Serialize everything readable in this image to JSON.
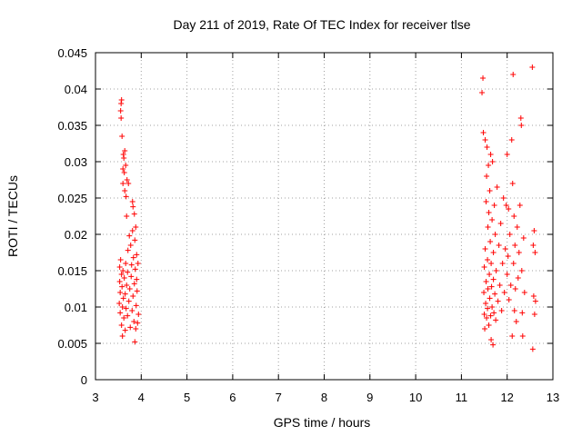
{
  "chart_data": {
    "type": "scatter",
    "title": "Day 211 of 2019, Rate Of TEC Index for receiver tlse",
    "xlabel": "GPS time / hours",
    "ylabel": "ROTI / TECUs",
    "xlim": [
      3,
      13
    ],
    "ylim": [
      0,
      0.045
    ],
    "xticks": [
      "3",
      "4",
      "5",
      "6",
      "7",
      "8",
      "9",
      "10",
      "11",
      "12",
      "13"
    ],
    "yticks": [
      "0",
      "0.005",
      "0.01",
      "0.015",
      "0.02",
      "0.025",
      "0.03",
      "0.035",
      "0.04",
      "0.045"
    ],
    "grid": true,
    "marker": "plus",
    "color": "#ff0000",
    "series": [
      {
        "name": "ROTI",
        "points": [
          [
            3.52,
            0.0105
          ],
          [
            3.53,
            0.0135
          ],
          [
            3.53,
            0.0155
          ],
          [
            3.54,
            0.012
          ],
          [
            3.54,
            0.0092
          ],
          [
            3.55,
            0.0165
          ],
          [
            3.55,
            0.037
          ],
          [
            3.56,
            0.038
          ],
          [
            3.56,
            0.036
          ],
          [
            3.57,
            0.0385
          ],
          [
            3.57,
            0.0145
          ],
          [
            3.57,
            0.0075
          ],
          [
            3.58,
            0.0128
          ],
          [
            3.58,
            0.0335
          ],
          [
            3.59,
            0.006
          ],
          [
            3.59,
            0.01
          ],
          [
            3.6,
            0.015
          ],
          [
            3.6,
            0.029
          ],
          [
            3.6,
            0.027
          ],
          [
            3.61,
            0.0112
          ],
          [
            3.61,
            0.031
          ],
          [
            3.62,
            0.0305
          ],
          [
            3.62,
            0.0085
          ],
          [
            3.63,
            0.0285
          ],
          [
            3.63,
            0.014
          ],
          [
            3.64,
            0.0315
          ],
          [
            3.64,
            0.026
          ],
          [
            3.65,
            0.0068
          ],
          [
            3.65,
            0.0118
          ],
          [
            3.66,
            0.0295
          ],
          [
            3.66,
            0.016
          ],
          [
            3.67,
            0.0252
          ],
          [
            3.67,
            0.0098
          ],
          [
            3.68,
            0.0225
          ],
          [
            3.68,
            0.013
          ],
          [
            3.69,
            0.0275
          ],
          [
            3.7,
            0.0088
          ],
          [
            3.7,
            0.0148
          ],
          [
            3.71,
            0.0178
          ],
          [
            3.72,
            0.027
          ],
          [
            3.73,
            0.0108
          ],
          [
            3.74,
            0.0198
          ],
          [
            3.75,
            0.0125
          ],
          [
            3.76,
            0.0072
          ],
          [
            3.77,
            0.0185
          ],
          [
            3.78,
            0.0142
          ],
          [
            3.79,
            0.0158
          ],
          [
            3.8,
            0.0095
          ],
          [
            3.81,
            0.0205
          ],
          [
            3.81,
            0.0245
          ],
          [
            3.82,
            0.0115
          ],
          [
            3.82,
            0.0238
          ],
          [
            3.83,
            0.0168
          ],
          [
            3.84,
            0.008
          ],
          [
            3.85,
            0.0132
          ],
          [
            3.85,
            0.0228
          ],
          [
            3.86,
            0.0052
          ],
          [
            3.86,
            0.0192
          ],
          [
            3.87,
            0.0152
          ],
          [
            3.88,
            0.007
          ],
          [
            3.88,
            0.021
          ],
          [
            3.89,
            0.0102
          ],
          [
            3.9,
            0.0172
          ],
          [
            3.9,
            0.0138
          ],
          [
            3.91,
            0.0122
          ],
          [
            3.92,
            0.0078
          ],
          [
            3.93,
            0.016
          ],
          [
            3.94,
            0.009
          ],
          [
            11.45,
            0.0395
          ],
          [
            11.47,
            0.0415
          ],
          [
            11.48,
            0.034
          ],
          [
            11.49,
            0.012
          ],
          [
            11.5,
            0.009
          ],
          [
            11.5,
            0.0155
          ],
          [
            11.51,
            0.007
          ],
          [
            11.52,
            0.033
          ],
          [
            11.52,
            0.018
          ],
          [
            11.53,
            0.0105
          ],
          [
            11.54,
            0.0245
          ],
          [
            11.54,
            0.0135
          ],
          [
            11.55,
            0.028
          ],
          [
            11.55,
            0.0085
          ],
          [
            11.56,
            0.032
          ],
          [
            11.57,
            0.0165
          ],
          [
            11.57,
            0.0098
          ],
          [
            11.58,
            0.021
          ],
          [
            11.58,
            0.0125
          ],
          [
            11.59,
            0.0295
          ],
          [
            11.6,
            0.0075
          ],
          [
            11.6,
            0.023
          ],
          [
            11.61,
            0.0145
          ],
          [
            11.62,
            0.0112
          ],
          [
            11.62,
            0.026
          ],
          [
            11.63,
            0.019
          ],
          [
            11.64,
            0.0088
          ],
          [
            11.64,
            0.031
          ],
          [
            11.65,
            0.0055
          ],
          [
            11.65,
            0.016
          ],
          [
            11.66,
            0.0128
          ],
          [
            11.67,
            0.022
          ],
          [
            11.67,
            0.01
          ],
          [
            11.68,
            0.03
          ],
          [
            11.69,
            0.0048
          ],
          [
            11.7,
            0.0175
          ],
          [
            11.7,
            0.0138
          ],
          [
            11.71,
            0.0092
          ],
          [
            11.72,
            0.024
          ],
          [
            11.73,
            0.0118
          ],
          [
            11.74,
            0.02
          ],
          [
            11.75,
            0.0082
          ],
          [
            11.76,
            0.015
          ],
          [
            11.78,
            0.0265
          ],
          [
            11.8,
            0.0108
          ],
          [
            11.82,
            0.0185
          ],
          [
            11.84,
            0.013
          ],
          [
            11.86,
            0.0215
          ],
          [
            11.88,
            0.0095
          ],
          [
            11.9,
            0.016
          ],
          [
            11.92,
            0.025
          ],
          [
            11.94,
            0.012
          ],
          [
            11.96,
            0.018
          ],
          [
            11.98,
            0.024
          ],
          [
            12.0,
            0.031
          ],
          [
            12.0,
            0.0145
          ],
          [
            12.02,
            0.017
          ],
          [
            12.03,
            0.0235
          ],
          [
            12.04,
            0.011
          ],
          [
            12.06,
            0.02
          ],
          [
            12.08,
            0.013
          ],
          [
            12.1,
            0.033
          ],
          [
            12.11,
            0.006
          ],
          [
            12.12,
            0.027
          ],
          [
            12.13,
            0.042
          ],
          [
            12.14,
            0.016
          ],
          [
            12.15,
            0.0225
          ],
          [
            12.16,
            0.0095
          ],
          [
            12.17,
            0.0185
          ],
          [
            12.18,
            0.0125
          ],
          [
            12.2,
            0.008
          ],
          [
            12.22,
            0.021
          ],
          [
            12.24,
            0.014
          ],
          [
            12.26,
            0.0175
          ],
          [
            12.28,
            0.024
          ],
          [
            12.3,
            0.036
          ],
          [
            12.31,
            0.035
          ],
          [
            12.32,
            0.015
          ],
          [
            12.33,
            0.0092
          ],
          [
            12.34,
            0.006
          ],
          [
            12.36,
            0.0195
          ],
          [
            12.38,
            0.012
          ],
          [
            12.55,
            0.043
          ],
          [
            12.56,
            0.0042
          ],
          [
            12.57,
            0.0185
          ],
          [
            12.58,
            0.0115
          ],
          [
            12.59,
            0.0205
          ],
          [
            12.6,
            0.009
          ],
          [
            12.61,
            0.0175
          ],
          [
            12.62,
            0.0108
          ]
        ]
      }
    ]
  }
}
